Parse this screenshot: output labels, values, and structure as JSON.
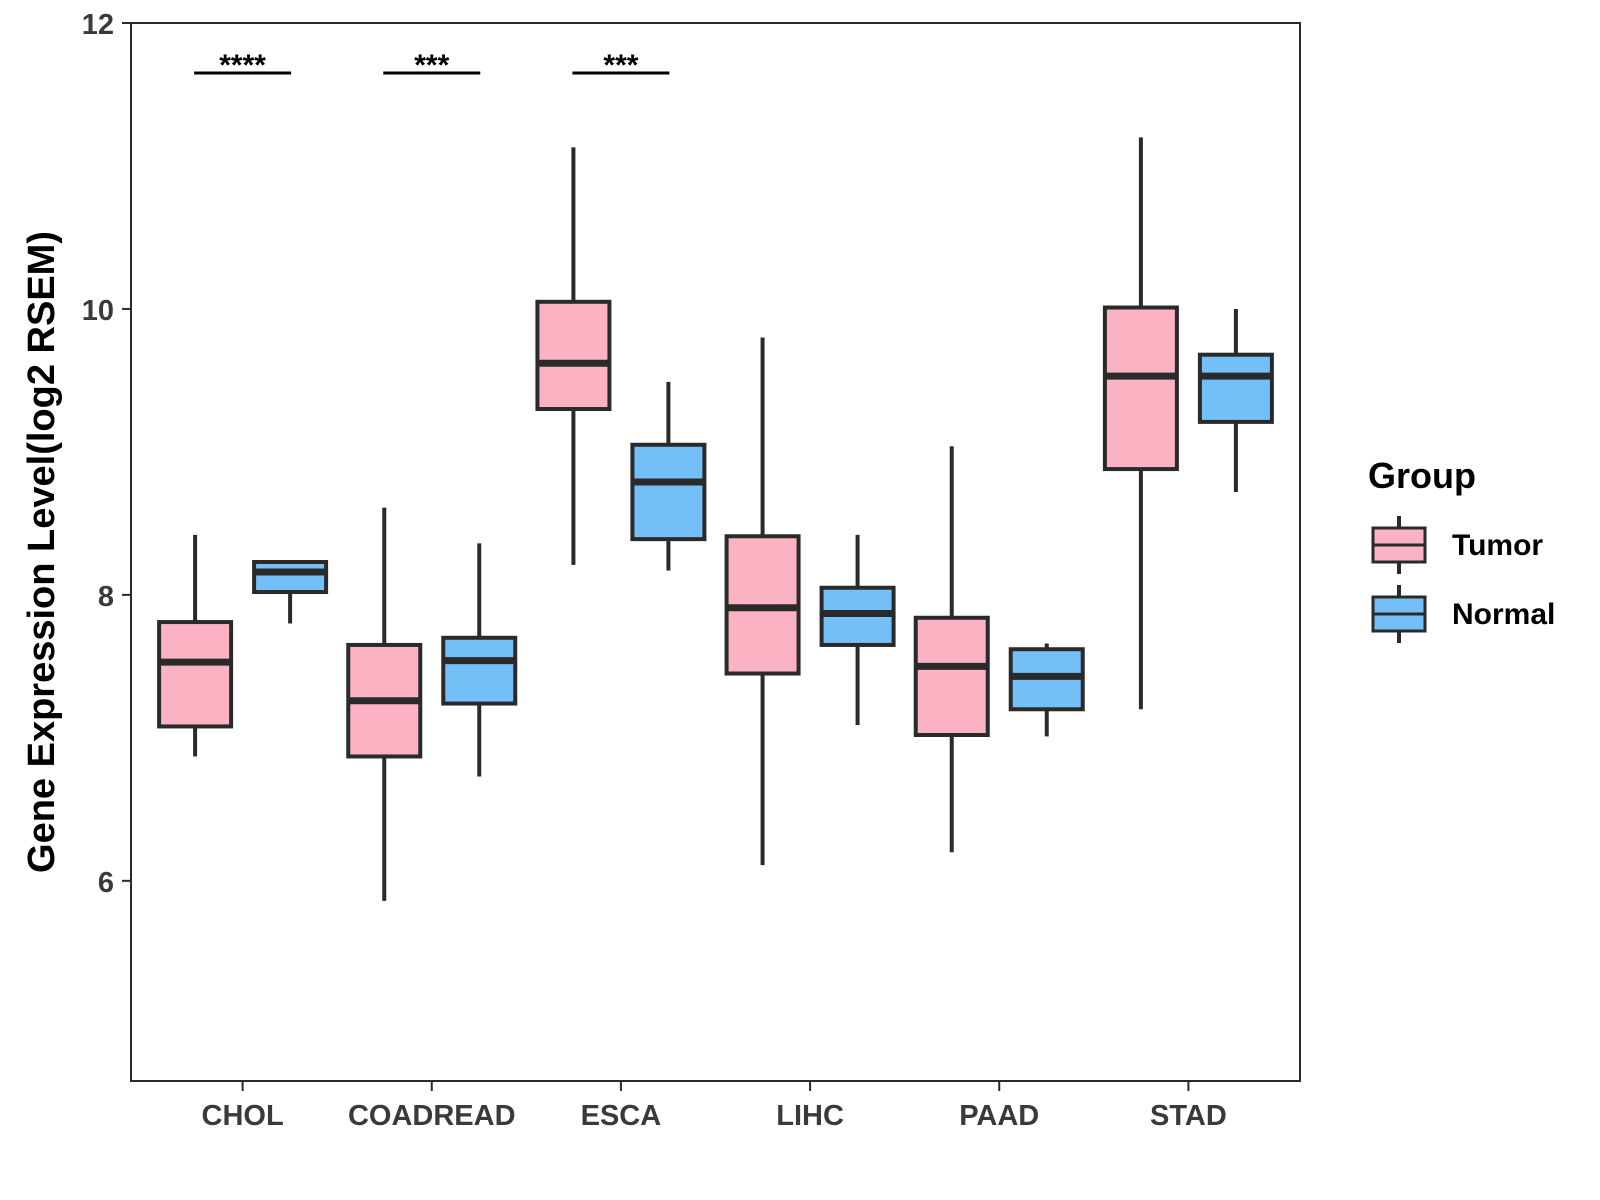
{
  "chart_data": {
    "type": "boxplot",
    "title": "",
    "xlabel": "",
    "ylabel": "Gene Expression Level(log2 RSEM)",
    "ylim": [
      4.6,
      12
    ],
    "yticks": [
      6,
      8,
      10,
      12
    ],
    "categories": [
      "CHOL",
      "COADREAD",
      "ESCA",
      "LIHC",
      "PAAD",
      "STAD"
    ],
    "legend": {
      "title": "Group",
      "position": "right",
      "entries": [
        "Tumor",
        "Normal"
      ]
    },
    "colors": {
      "Tumor": "#FBB2C3",
      "Normal": "#75BFF8",
      "outline": "#2a2a2a"
    },
    "series": [
      {
        "name": "Tumor",
        "boxes": [
          {
            "category": "CHOL",
            "whisker_low": 6.87,
            "q1": 7.08,
            "median": 7.53,
            "q3": 7.81,
            "whisker_high": 8.42
          },
          {
            "category": "COADREAD",
            "whisker_low": 5.86,
            "q1": 6.87,
            "median": 7.26,
            "q3": 7.65,
            "whisker_high": 8.61
          },
          {
            "category": "ESCA",
            "whisker_low": 8.21,
            "q1": 9.3,
            "median": 9.62,
            "q3": 10.05,
            "whisker_high": 11.13
          },
          {
            "category": "LIHC",
            "whisker_low": 6.11,
            "q1": 7.45,
            "median": 7.91,
            "q3": 8.41,
            "whisker_high": 9.8
          },
          {
            "category": "PAAD",
            "whisker_low": 6.2,
            "q1": 7.02,
            "median": 7.5,
            "q3": 7.84,
            "whisker_high": 9.04
          },
          {
            "category": "STAD",
            "whisker_low": 7.2,
            "q1": 8.88,
            "median": 9.53,
            "q3": 10.01,
            "whisker_high": 11.2
          }
        ]
      },
      {
        "name": "Normal",
        "boxes": [
          {
            "category": "CHOL",
            "whisker_low": 7.8,
            "q1": 8.02,
            "median": 8.16,
            "q3": 8.23,
            "whisker_high": 8.23
          },
          {
            "category": "COADREAD",
            "whisker_low": 6.73,
            "q1": 7.24,
            "median": 7.54,
            "q3": 7.7,
            "whisker_high": 8.36
          },
          {
            "category": "ESCA",
            "whisker_low": 8.17,
            "q1": 8.39,
            "median": 8.79,
            "q3": 9.05,
            "whisker_high": 9.49
          },
          {
            "category": "LIHC",
            "whisker_low": 7.09,
            "q1": 7.65,
            "median": 7.87,
            "q3": 8.05,
            "whisker_high": 8.42
          },
          {
            "category": "PAAD",
            "whisker_low": 7.01,
            "q1": 7.2,
            "median": 7.43,
            "q3": 7.62,
            "whisker_high": 7.66
          },
          {
            "category": "STAD",
            "whisker_low": 8.72,
            "q1": 9.21,
            "median": 9.53,
            "q3": 9.68,
            "whisker_high": 10.0
          }
        ]
      }
    ],
    "annotations": [
      {
        "category": "CHOL",
        "label": "****",
        "y": 11.65
      },
      {
        "category": "COADREAD",
        "label": "***",
        "y": 11.65
      },
      {
        "category": "ESCA",
        "label": "***",
        "y": 11.65
      }
    ]
  }
}
